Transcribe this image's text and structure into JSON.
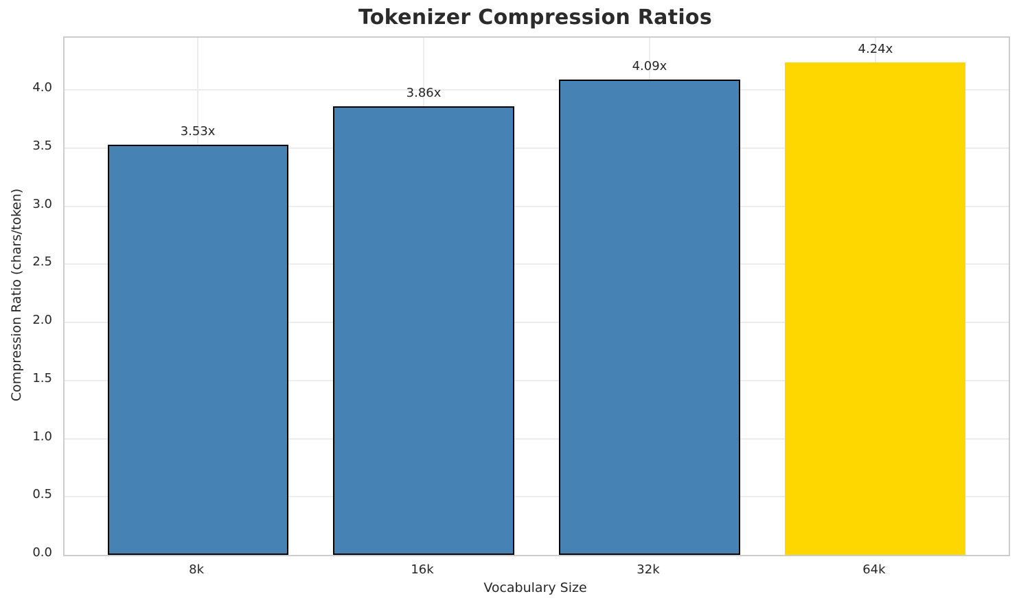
{
  "chart_data": {
    "type": "bar",
    "title": "Tokenizer Compression Ratios",
    "xlabel": "Vocabulary Size",
    "ylabel": "Compression Ratio (chars/token)",
    "categories": [
      "8k",
      "16k",
      "32k",
      "64k"
    ],
    "values": [
      3.53,
      3.86,
      4.09,
      4.24
    ],
    "bar_value_labels": [
      "3.53x",
      "3.86x",
      "4.09x",
      "4.24x"
    ],
    "bar_colors": [
      "#4682B4",
      "#4682B4",
      "#4682B4",
      "#FFD700"
    ],
    "bar_edge_colors": [
      "#000000",
      "#000000",
      "#000000",
      "none"
    ],
    "highlighted_category": "64k",
    "ytick_labels": [
      "0.0",
      "0.5",
      "1.0",
      "1.5",
      "2.0",
      "2.5",
      "3.0",
      "3.5",
      "4.0"
    ],
    "yticks": [
      0.0,
      0.5,
      1.0,
      1.5,
      2.0,
      2.5,
      3.0,
      3.5,
      4.0
    ],
    "ylim": [
      0,
      4.45
    ],
    "grid": true,
    "legend": "none",
    "colors": {
      "bar_default": "#4682B4",
      "bar_highlight": "#FFD700",
      "bar_edge": "#000000",
      "grid": "#ececec",
      "spine": "#cdcdcd",
      "text": "#262626",
      "title": "#2b2b2b",
      "background": "#ffffff"
    }
  }
}
